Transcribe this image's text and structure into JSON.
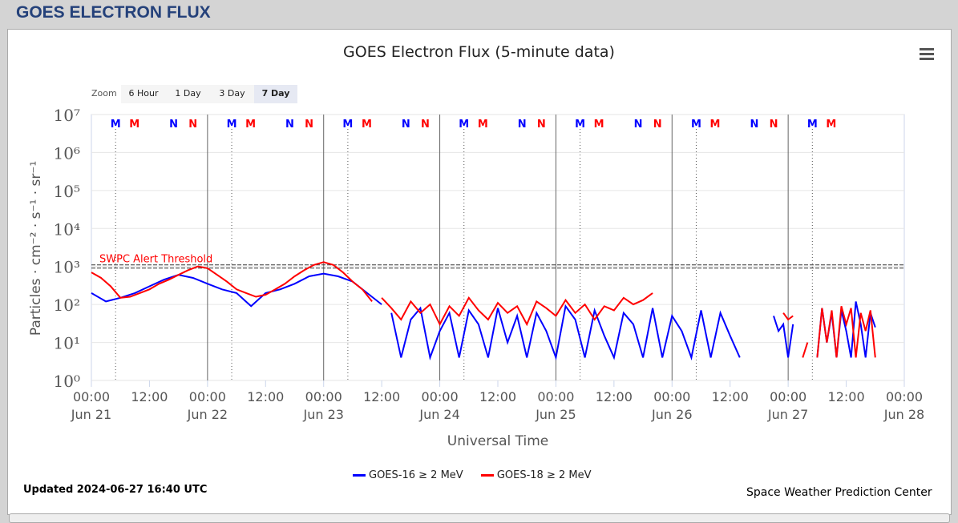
{
  "header": "GOES ELECTRON FLUX",
  "zoom": {
    "label": "Zoom",
    "buttons": [
      "6 Hour",
      "1 Day",
      "3 Day",
      "7 Day"
    ],
    "selected": "7 Day"
  },
  "footer": {
    "updated": "Updated 2024-06-27 16:40 UTC",
    "credit": "Space Weather Prediction Center"
  },
  "chart_data": {
    "type": "line",
    "title": "GOES Electron Flux (5-minute data)",
    "xlabel": "Universal Time",
    "ylabel": "Particles · cm⁻² · s⁻¹ · sr⁻¹",
    "yscale": "log",
    "ylim": [
      1,
      10000000
    ],
    "yticks": [
      "10⁰",
      "10¹",
      "10²",
      "10³",
      "10⁴",
      "10⁵",
      "10⁶",
      "10⁷"
    ],
    "xlim_hours": [
      0,
      168
    ],
    "xticks": [
      {
        "h": 0,
        "t": "00:00",
        "d": "Jun 21"
      },
      {
        "h": 12,
        "t": "12:00"
      },
      {
        "h": 24,
        "t": "00:00",
        "d": "Jun 22"
      },
      {
        "h": 36,
        "t": "12:00"
      },
      {
        "h": 48,
        "t": "00:00",
        "d": "Jun 23"
      },
      {
        "h": 60,
        "t": "12:00"
      },
      {
        "h": 72,
        "t": "00:00",
        "d": "Jun 24"
      },
      {
        "h": 84,
        "t": "12:00"
      },
      {
        "h": 96,
        "t": "00:00",
        "d": "Jun 25"
      },
      {
        "h": 108,
        "t": "12:00"
      },
      {
        "h": 120,
        "t": "00:00",
        "d": "Jun 26"
      },
      {
        "h": 132,
        "t": "12:00"
      },
      {
        "h": 144,
        "t": "00:00",
        "d": "Jun 27"
      },
      {
        "h": 156,
        "t": "12:00"
      },
      {
        "h": 168,
        "t": "00:00",
        "d": "Jun 28"
      }
    ],
    "threshold": {
      "value": 1000,
      "label": "SWPC Alert Threshold",
      "color": "#ff0000"
    },
    "markers": [
      {
        "h": 5,
        "l": "M",
        "c": "#0000ff"
      },
      {
        "h": 8.9,
        "l": "M",
        "c": "#ff0000"
      },
      {
        "h": 17,
        "l": "N",
        "c": "#0000ff"
      },
      {
        "h": 21,
        "l": "N",
        "c": "#ff0000"
      },
      {
        "h": 29,
        "l": "M",
        "c": "#0000ff"
      },
      {
        "h": 32.9,
        "l": "M",
        "c": "#ff0000"
      },
      {
        "h": 41,
        "l": "N",
        "c": "#0000ff"
      },
      {
        "h": 45,
        "l": "N",
        "c": "#ff0000"
      },
      {
        "h": 53,
        "l": "M",
        "c": "#0000ff"
      },
      {
        "h": 56.9,
        "l": "M",
        "c": "#ff0000"
      },
      {
        "h": 65,
        "l": "N",
        "c": "#0000ff"
      },
      {
        "h": 69,
        "l": "N",
        "c": "#ff0000"
      },
      {
        "h": 77,
        "l": "M",
        "c": "#0000ff"
      },
      {
        "h": 80.9,
        "l": "M",
        "c": "#ff0000"
      },
      {
        "h": 89,
        "l": "N",
        "c": "#0000ff"
      },
      {
        "h": 93,
        "l": "N",
        "c": "#ff0000"
      },
      {
        "h": 101,
        "l": "M",
        "c": "#0000ff"
      },
      {
        "h": 104.9,
        "l": "M",
        "c": "#ff0000"
      },
      {
        "h": 113,
        "l": "N",
        "c": "#0000ff"
      },
      {
        "h": 117,
        "l": "N",
        "c": "#ff0000"
      },
      {
        "h": 125,
        "l": "M",
        "c": "#0000ff"
      },
      {
        "h": 128.9,
        "l": "M",
        "c": "#ff0000"
      },
      {
        "h": 137,
        "l": "N",
        "c": "#0000ff"
      },
      {
        "h": 141,
        "l": "N",
        "c": "#ff0000"
      },
      {
        "h": 149,
        "l": "M",
        "c": "#0000ff"
      },
      {
        "h": 152.9,
        "l": "M",
        "c": "#ff0000"
      }
    ],
    "series": [
      {
        "name": "GOES-16 ≥ 2 MeV",
        "color": "#0000ff",
        "segments": [
          {
            "start": 0,
            "step": 3,
            "values": [
              200,
              120,
              150,
              200,
              300,
              450,
              600,
              500,
              350,
              250,
              200,
              90,
              200,
              250,
              350,
              550,
              650,
              550,
              400,
              200,
              100
            ]
          },
          {
            "start": 62,
            "step": 2,
            "values": [
              60,
              4,
              40,
              80,
              4,
              20,
              60,
              4,
              70,
              30,
              4,
              80,
              10,
              50,
              4,
              60,
              20,
              4,
              90,
              40,
              4,
              70,
              15,
              4,
              60,
              30,
              4,
              80,
              4,
              50,
              20,
              4,
              70,
              4,
              60,
              15,
              4
            ]
          },
          {
            "start": 141,
            "step": 1,
            "values": [
              50,
              20,
              30,
              4,
              30
            ]
          },
          {
            "start": 150,
            "step": 1,
            "values": [
              4,
              80,
              10,
              60,
              4,
              70,
              20,
              4,
              120,
              30,
              4,
              60,
              25
            ]
          }
        ]
      },
      {
        "name": "GOES-18 ≥ 2 MeV",
        "color": "#ff0000",
        "segments": [
          {
            "start": 0,
            "step": 2,
            "values": [
              700,
              500,
              300,
              150,
              160,
              200,
              250,
              350,
              450,
              600,
              800,
              1000,
              900,
              600,
              400,
              250,
              200,
              160,
              180,
              250,
              350,
              550,
              800,
              1100,
              1300,
              1100,
              700,
              400,
              250,
              120
            ]
          },
          {
            "start": 60,
            "step": 2,
            "values": [
              150,
              80,
              40,
              120,
              60,
              100,
              30,
              90,
              50,
              150,
              70,
              40,
              110,
              60,
              90,
              30,
              120,
              80,
              50,
              130,
              60,
              100,
              40,
              90,
              70,
              150,
              100,
              130,
              200
            ]
          },
          {
            "start": 143,
            "step": 1,
            "values": [
              60,
              40,
              50
            ]
          },
          {
            "start": 147,
            "step": 1,
            "values": [
              4,
              10
            ]
          },
          {
            "start": 150,
            "step": 1,
            "values": [
              4,
              80,
              10,
              70,
              4,
              90,
              30,
              80,
              4,
              60,
              20,
              70,
              4
            ]
          }
        ]
      }
    ]
  }
}
